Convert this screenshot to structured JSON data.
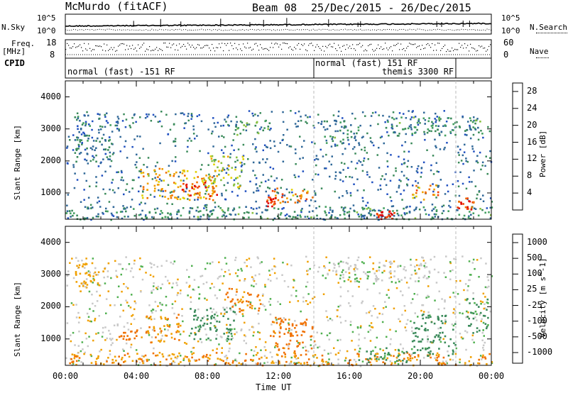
{
  "header": {
    "station": "McMurdo (fitACF)",
    "beam": "Beam 08",
    "date_range": "25/Dec/2015 - 26/Dec/2015"
  },
  "top_panels": {
    "nsky_label": "N.Sky",
    "nsky_ticks": [
      "10^5",
      "10^0"
    ],
    "nsearch_label": "N.Search",
    "nsearch_ticks": [
      "10^5",
      "10^0"
    ],
    "freq_label_line1": "Freq.",
    "freq_label_line2": "[MHz]",
    "freq_ticks": [
      "18",
      "8"
    ],
    "nave_label": "Nave",
    "nave_ticks": [
      "60",
      "0"
    ],
    "cpid_label": "CPID",
    "cpid_modes": [
      {
        "text": "normal (fast) -151 RF"
      },
      {
        "text": "normal (fast) 151 RF"
      },
      {
        "text": "themis 3300 RF"
      }
    ]
  },
  "x_axis": {
    "label": "Time UT",
    "ticks": [
      "00:00",
      "04:00",
      "08:00",
      "12:00",
      "16:00",
      "20:00",
      "00:00"
    ]
  },
  "power_panel": {
    "ylabel": "Slant Range [km]",
    "yticks": [
      "4000",
      "3000",
      "2000",
      "1000"
    ],
    "colorbar_label": "Power [dB]",
    "colorbar_ticks": [
      "28",
      "24",
      "20",
      "16",
      "12",
      "8",
      "4"
    ],
    "colors": [
      "#0000ff",
      "#2050c0",
      "#306898",
      "#3a8a5a",
      "#44a060",
      "#88c040",
      "#e0d000",
      "#f0a000",
      "#f07000",
      "#f04000",
      "#e00000"
    ]
  },
  "velocity_panel": {
    "ylabel": "Slant Range [km]",
    "yticks": [
      "4000",
      "3000",
      "2000",
      "1000"
    ],
    "colorbar_label": "Velocity [m s^-1]",
    "colorbar_ticks": [
      "1000",
      "500",
      "100",
      "25",
      "-25",
      "-100",
      "-500",
      "-1000"
    ],
    "colors": [
      "#2040c0",
      "#2a60b0",
      "#3a8a5a",
      "#50b050",
      "#c8c8c8",
      "#f0a000",
      "#f07000",
      "#f03000",
      "#e00000"
    ]
  },
  "chart_data": [
    {
      "type": "heatmap",
      "title": "Power",
      "xlabel": "Time UT",
      "ylabel": "Slant Range [km]",
      "xlim": [
        0,
        24
      ],
      "ylim": [
        180,
        4500
      ],
      "zlabel": "Power [dB]",
      "zlim": [
        0,
        30
      ],
      "blobs": [
        {
          "t0": 0.0,
          "t1": 24.0,
          "r0": 200,
          "r1": 600,
          "z": 10
        },
        {
          "t0": 4.2,
          "t1": 8.5,
          "r0": 800,
          "r1": 1800,
          "z": 20
        },
        {
          "t0": 6.5,
          "t1": 8.5,
          "r0": 900,
          "r1": 1400,
          "z": 26
        },
        {
          "t0": 8.0,
          "t1": 10.0,
          "r0": 1200,
          "r1": 2200,
          "z": 16
        },
        {
          "t0": 11.5,
          "t1": 14.0,
          "r0": 700,
          "r1": 1200,
          "z": 22
        },
        {
          "t0": 11.3,
          "t1": 11.8,
          "r0": 600,
          "r1": 900,
          "z": 28
        },
        {
          "t0": 17.5,
          "t1": 18.5,
          "r0": 200,
          "r1": 500,
          "z": 28
        },
        {
          "t0": 19.5,
          "t1": 21.0,
          "r0": 800,
          "r1": 1300,
          "z": 22
        },
        {
          "t0": 22.0,
          "t1": 23.0,
          "r0": 500,
          "r1": 900,
          "z": 26
        },
        {
          "t0": 9.5,
          "t1": 11.5,
          "r0": 2800,
          "r1": 3300,
          "z": 12
        },
        {
          "t0": 0.5,
          "t1": 2.5,
          "r0": 2000,
          "r1": 3500,
          "z": 8
        },
        {
          "t0": 14.5,
          "t1": 16.5,
          "r0": 2500,
          "r1": 3300,
          "z": 10
        },
        {
          "t0": 18.0,
          "t1": 23.5,
          "r0": 2800,
          "r1": 3400,
          "z": 10
        }
      ]
    },
    {
      "type": "heatmap",
      "title": "Velocity",
      "xlabel": "Time UT",
      "ylabel": "Slant Range [km]",
      "xlim": [
        0,
        24
      ],
      "ylim": [
        180,
        4500
      ],
      "zlabel": "Velocity [m s^-1]",
      "zlim": [
        -1000,
        1000
      ],
      "blobs": [
        {
          "t0": 0.0,
          "t1": 24.0,
          "r0": 200,
          "r1": 600,
          "z": -100
        },
        {
          "t0": 4.5,
          "t1": 6.5,
          "r0": 900,
          "r1": 1800,
          "z": -100
        },
        {
          "t0": 7.0,
          "t1": 9.5,
          "r0": 1000,
          "r1": 2000,
          "z": 150
        },
        {
          "t0": 11.5,
          "t1": 14.0,
          "r0": 600,
          "r1": 1700,
          "z": -150
        },
        {
          "t0": 9.0,
          "t1": 11.0,
          "r0": 1800,
          "r1": 2600,
          "z": -100
        },
        {
          "t0": 16.5,
          "t1": 19.5,
          "r0": 300,
          "r1": 800,
          "z": 120
        },
        {
          "t0": 19.5,
          "t1": 22.0,
          "r0": 500,
          "r1": 1800,
          "z": 200
        },
        {
          "t0": 14.5,
          "t1": 20.5,
          "r0": 2800,
          "r1": 3400,
          "z": 0
        },
        {
          "t0": 0.5,
          "t1": 2.5,
          "r0": 2500,
          "r1": 3400,
          "z": -50
        },
        {
          "t0": 3.0,
          "t1": 4.0,
          "r0": 1000,
          "r1": 1300,
          "z": -150
        },
        {
          "t0": 22.5,
          "t1": 23.8,
          "r0": 1200,
          "r1": 2300,
          "z": 120
        }
      ]
    }
  ]
}
